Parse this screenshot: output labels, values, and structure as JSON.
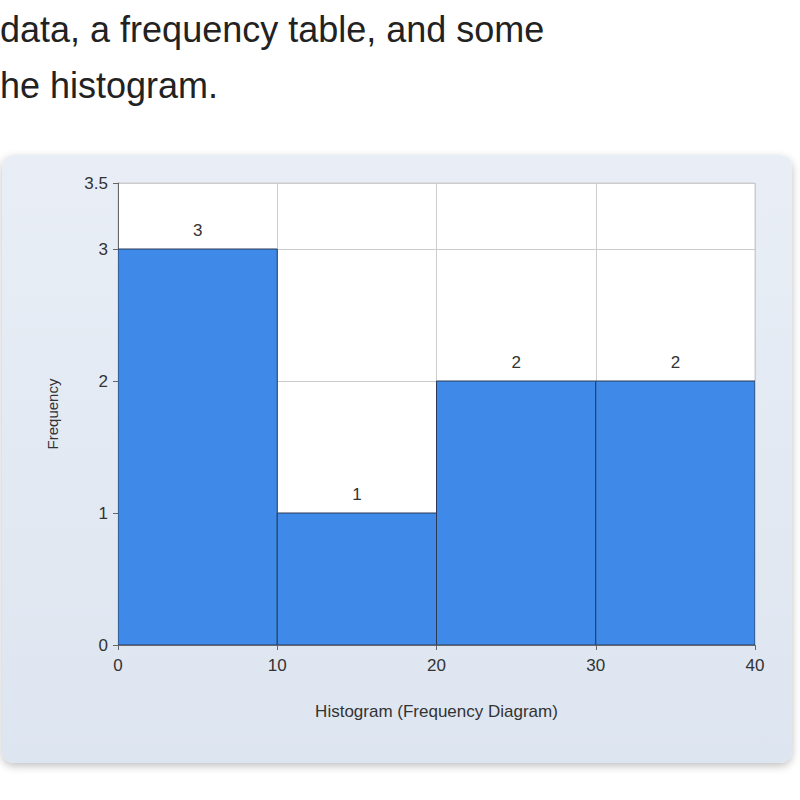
{
  "page_text": [
    "data, a frequency table, and some",
    "he histogram."
  ],
  "chart_data": {
    "type": "histogram",
    "bins": [
      0,
      10,
      20,
      30,
      40
    ],
    "values": [
      3,
      1,
      2,
      2
    ],
    "color": "#3f8ae8",
    "xlabel": "Histogram (Frequency Diagram)",
    "ylabel": "Frequency",
    "xlim": [
      0,
      40
    ],
    "xticks": [
      0,
      10,
      20,
      30,
      40
    ],
    "ylim": [
      0,
      3.5
    ],
    "yticks": [
      0,
      1,
      2,
      3
    ],
    "grid": true,
    "data_labels": true
  }
}
